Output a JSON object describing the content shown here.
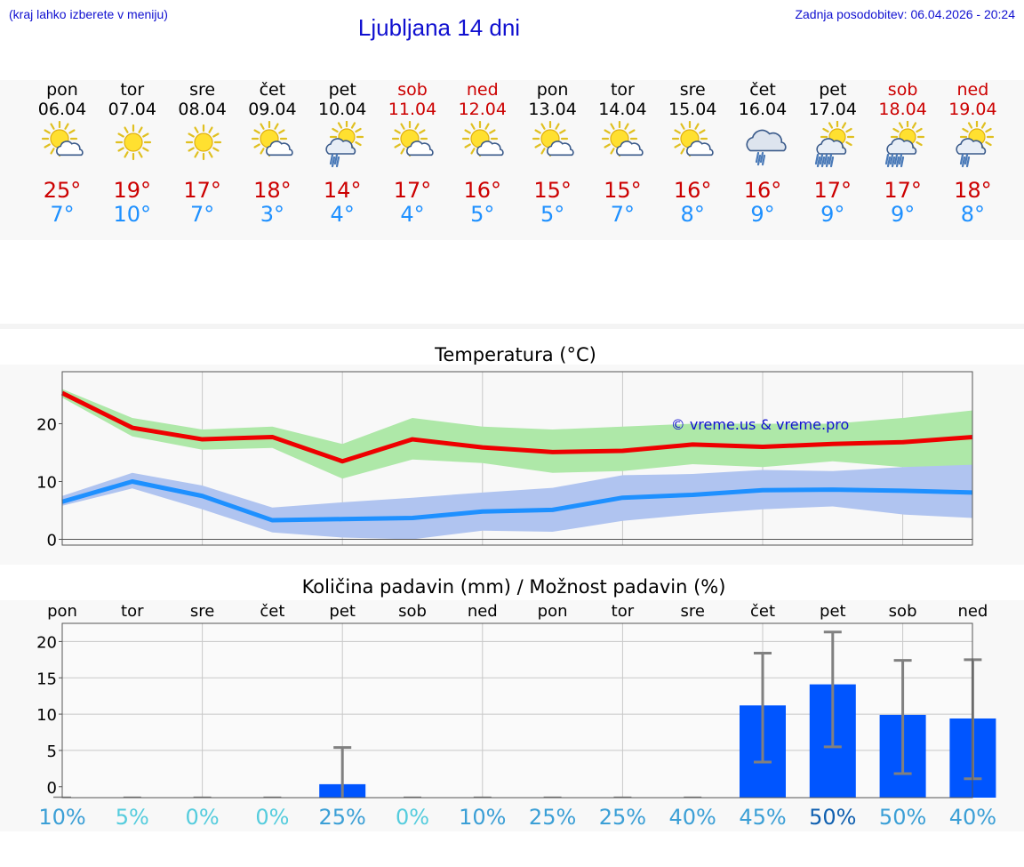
{
  "header": {
    "hint": "(kraj lahko izberete v meniju)",
    "title": "Ljubljana 14 dni",
    "updated": "Zadnja posodobitev: 06.04.2026 - 20:24"
  },
  "colors": {
    "link": "#1010d0",
    "max_temp": "#cc0000",
    "min_temp": "#1e90ff",
    "max_band": "#aee8a8",
    "min_band": "#b0c4f0",
    "max_line": "#ee0000",
    "min_line": "#1e90ff",
    "bar": "#0055ff",
    "error": "#808080"
  },
  "days": [
    {
      "name": "pon",
      "date": "06.04",
      "weekend": false,
      "icon": "sun-cloud-icon",
      "tmax": "25°",
      "tmin": "7°"
    },
    {
      "name": "tor",
      "date": "07.04",
      "weekend": false,
      "icon": "sun-icon",
      "tmax": "19°",
      "tmin": "10°"
    },
    {
      "name": "sre",
      "date": "08.04",
      "weekend": false,
      "icon": "sun-icon",
      "tmax": "17°",
      "tmin": "7°"
    },
    {
      "name": "čet",
      "date": "09.04",
      "weekend": false,
      "icon": "sun-cloud-icon",
      "tmax": "18°",
      "tmin": "3°"
    },
    {
      "name": "pet",
      "date": "10.04",
      "weekend": false,
      "icon": "sun-rain-icon",
      "tmax": "14°",
      "tmin": "4°"
    },
    {
      "name": "sob",
      "date": "11.04",
      "weekend": true,
      "icon": "sun-cloud-icon",
      "tmax": "17°",
      "tmin": "4°"
    },
    {
      "name": "ned",
      "date": "12.04",
      "weekend": true,
      "icon": "sun-cloud-icon",
      "tmax": "16°",
      "tmin": "5°"
    },
    {
      "name": "pon",
      "date": "13.04",
      "weekend": false,
      "icon": "sun-cloud-icon",
      "tmax": "15°",
      "tmin": "5°"
    },
    {
      "name": "tor",
      "date": "14.04",
      "weekend": false,
      "icon": "sun-cloud-icon",
      "tmax": "15°",
      "tmin": "7°"
    },
    {
      "name": "sre",
      "date": "15.04",
      "weekend": false,
      "icon": "sun-cloud-icon",
      "tmax": "16°",
      "tmin": "8°"
    },
    {
      "name": "čet",
      "date": "16.04",
      "weekend": false,
      "icon": "cloud-rain-icon",
      "tmax": "16°",
      "tmin": "9°"
    },
    {
      "name": "pet",
      "date": "17.04",
      "weekend": false,
      "icon": "sun-heavy-rain-icon",
      "tmax": "17°",
      "tmin": "9°"
    },
    {
      "name": "sob",
      "date": "18.04",
      "weekend": true,
      "icon": "sun-heavy-rain-icon",
      "tmax": "17°",
      "tmin": "9°"
    },
    {
      "name": "ned",
      "date": "19.04",
      "weekend": true,
      "icon": "sun-rain-icon",
      "tmax": "18°",
      "tmin": "8°"
    }
  ],
  "chart_data": [
    {
      "type": "line",
      "title": "Temperatura (°C)",
      "watermark": "© vreme.us & vreme.pro",
      "x": [
        "06.04",
        "07.04",
        "08.04",
        "09.04",
        "10.04",
        "11.04",
        "12.04",
        "13.04",
        "14.04",
        "15.04",
        "16.04",
        "17.04",
        "18.04",
        "19.04"
      ],
      "ylim": [
        -1,
        29
      ],
      "yticks": [
        0,
        10,
        20
      ],
      "grid": true,
      "series": [
        {
          "values": [
            25.3,
            19.3,
            17.3,
            17.7,
            13.5,
            17.3,
            15.9,
            15.1,
            15.3,
            16.4,
            16.0,
            16.5,
            16.8,
            17.7
          ],
          "band_low": [
            24.5,
            17.8,
            15.5,
            15.8,
            10.5,
            13.8,
            13.2,
            11.5,
            11.8,
            13.0,
            12.5,
            13.5,
            12.5,
            12.5
          ],
          "band_high": [
            26.0,
            21.0,
            19.0,
            19.5,
            16.5,
            21.0,
            19.5,
            19.0,
            19.5,
            20.0,
            20.0,
            20.0,
            21.0,
            22.3
          ]
        },
        {
          "values": [
            6.5,
            10.0,
            7.5,
            3.3,
            3.5,
            3.7,
            4.8,
            5.1,
            7.2,
            7.7,
            8.5,
            8.6,
            8.4,
            8.1
          ],
          "band_low": [
            5.8,
            8.8,
            5.2,
            1.2,
            0.3,
            0.0,
            1.5,
            1.3,
            3.2,
            4.3,
            5.2,
            5.7,
            4.3,
            3.7
          ],
          "band_high": [
            7.5,
            11.5,
            9.3,
            5.5,
            6.4,
            7.2,
            8.1,
            8.9,
            11.1,
            11.3,
            12.0,
            11.8,
            12.5,
            12.9
          ]
        }
      ]
    },
    {
      "type": "bar",
      "title": "Količina padavin (mm) / Možnost padavin (%)",
      "categories": [
        "pon",
        "tor",
        "sre",
        "čet",
        "pet",
        "sob",
        "ned",
        "pon",
        "tor",
        "sre",
        "čet",
        "pet",
        "sob",
        "ned"
      ],
      "ylim": [
        -1.5,
        22.5
      ],
      "yticks": [
        0,
        5,
        10,
        15,
        20
      ],
      "grid": true,
      "values": [
        0,
        0,
        0,
        0,
        0.35,
        0,
        0,
        0,
        0,
        0,
        11.2,
        14.1,
        9.9,
        9.4
      ],
      "error_low": [
        0,
        0,
        0,
        0,
        0,
        0,
        0,
        0,
        0,
        0,
        3.4,
        5.5,
        1.8,
        1.1
      ],
      "error_high": [
        0,
        0,
        0,
        0,
        5.4,
        0,
        0,
        0,
        0,
        0,
        18.4,
        21.3,
        17.4,
        17.5
      ],
      "probability": [
        "10%",
        "5%",
        "0%",
        "0%",
        "25%",
        "0%",
        "10%",
        "25%",
        "25%",
        "40%",
        "45%",
        "50%",
        "50%",
        "40%"
      ],
      "probability_colors": [
        "#3b9fd6",
        "#55ccdd",
        "#55ccdd",
        "#55ccdd",
        "#3b9fd6",
        "#55ccdd",
        "#3b9fd6",
        "#3b9fd6",
        "#3b9fd6",
        "#3b9fd6",
        "#3b9fd6",
        "#1060b0",
        "#3b9fd6",
        "#3b9fd6"
      ]
    }
  ]
}
